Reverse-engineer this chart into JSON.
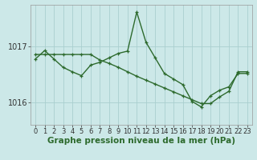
{
  "hours": [
    0,
    1,
    2,
    3,
    4,
    5,
    6,
    7,
    8,
    9,
    10,
    11,
    12,
    13,
    14,
    15,
    16,
    17,
    18,
    19,
    20,
    21,
    22,
    23
  ],
  "series1": [
    1016.78,
    1016.93,
    1016.78,
    1016.63,
    1016.55,
    1016.48,
    1016.67,
    1016.72,
    1016.8,
    1016.88,
    1016.92,
    1017.62,
    1017.08,
    1016.8,
    1016.52,
    1016.42,
    1016.32,
    1016.02,
    1015.92,
    1016.12,
    1016.22,
    1016.28,
    1016.52,
    1016.52
  ],
  "series2": [
    1016.86,
    1016.86,
    1016.86,
    1016.86,
    1016.86,
    1016.86,
    1016.86,
    1016.76,
    1016.7,
    1016.63,
    1016.55,
    1016.47,
    1016.4,
    1016.33,
    1016.26,
    1016.19,
    1016.12,
    1016.05,
    1015.98,
    1015.98,
    1016.1,
    1016.2,
    1016.55,
    1016.55
  ],
  "line_color": "#2d6a2d",
  "bg_color": "#cce8e8",
  "grid_color": "#aacfcf",
  "xlabel": "Graphe pression niveau de la mer (hPa)",
  "yticks": [
    1016,
    1017
  ],
  "ylim": [
    1015.6,
    1017.75
  ],
  "xlim": [
    -0.5,
    23.5
  ],
  "xlabel_fontsize": 7.5,
  "tick_fontsize": 6,
  "line_width": 1.0,
  "marker_size": 3.5
}
